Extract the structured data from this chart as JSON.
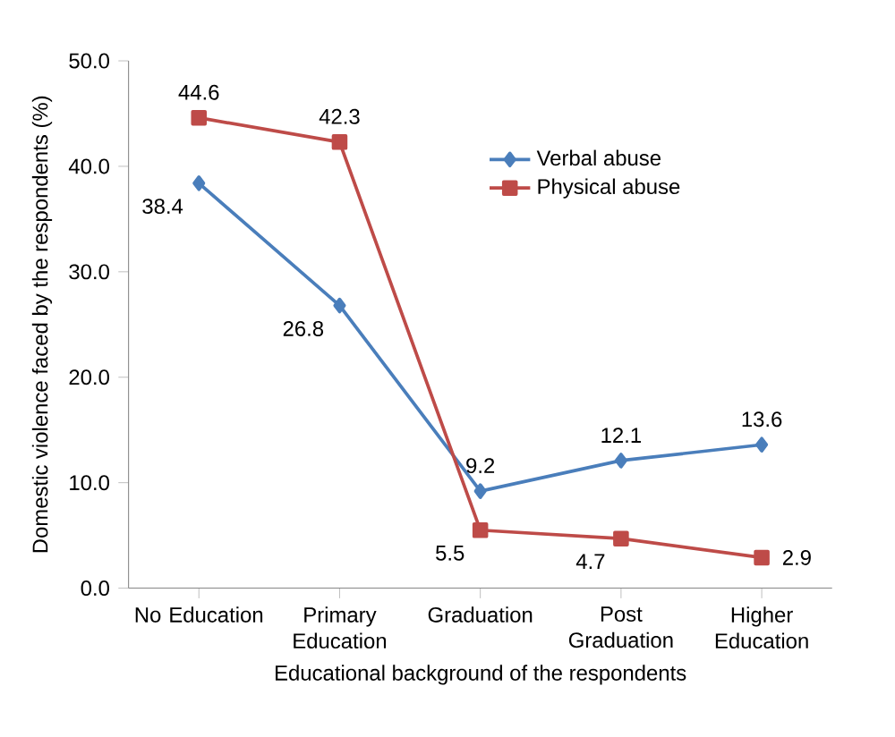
{
  "chart_data": {
    "type": "line",
    "xlabel": "Educational background of the respondents",
    "ylabel": "Domestic violence faced by the respondents (%)",
    "categories": [
      "No Education",
      "Primary Education",
      "Graduation",
      "Post Graduation",
      "Higher Education"
    ],
    "series": [
      {
        "name": "Verbal abuse",
        "color": "#4a7ebb",
        "marker": "diamond",
        "values": [
          38.4,
          26.8,
          9.2,
          12.1,
          13.6
        ]
      },
      {
        "name": "Physical abuse",
        "color": "#be4b48",
        "marker": "square",
        "values": [
          44.6,
          42.3,
          5.5,
          4.7,
          2.9
        ]
      }
    ],
    "ylim": [
      0,
      50
    ],
    "yticks": [
      {
        "value": 0,
        "label": "0.0"
      },
      {
        "value": 10,
        "label": "10.0"
      },
      {
        "value": 20,
        "label": "20.0"
      },
      {
        "value": 30,
        "label": "30.0"
      },
      {
        "value": 40,
        "label": "40.0"
      },
      {
        "value": 50,
        "label": "50.0"
      }
    ],
    "data_labels": true,
    "legend": "top right",
    "grid": false
  }
}
